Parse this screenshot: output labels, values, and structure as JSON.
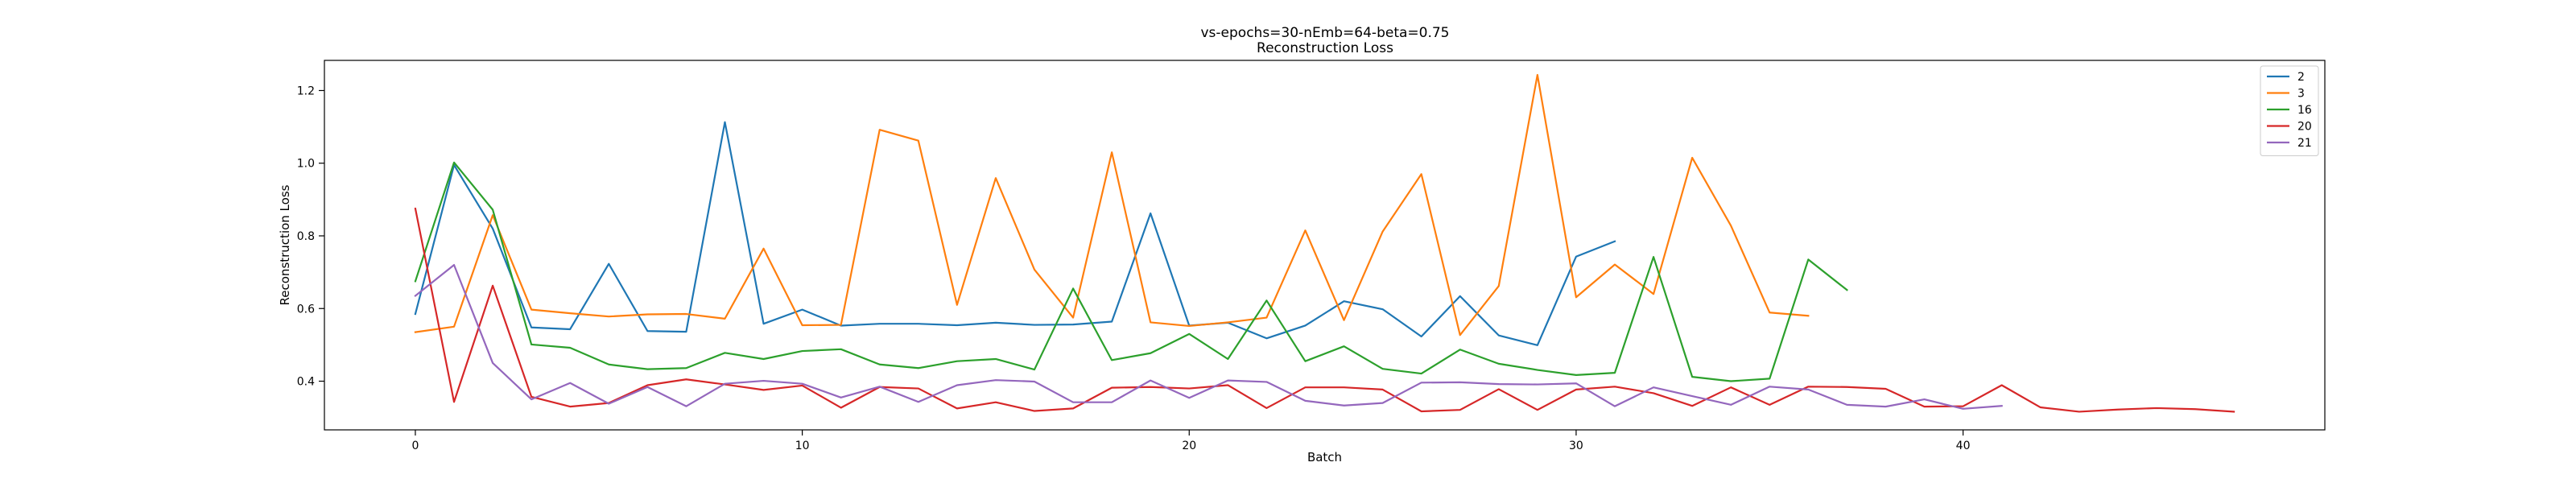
{
  "chart_data": {
    "type": "line",
    "title": "vs-epochs=30-nEmb=64-beta=0.75",
    "subtitle": "Reconstruction Loss",
    "xlabel": "Batch",
    "ylabel": "Reconstruction Loss",
    "xlim": [
      -2.35,
      49.35
    ],
    "ylim": [
      0.266,
      1.283
    ],
    "xticks": [
      0,
      10,
      20,
      30,
      40
    ],
    "yticks": [
      0.4,
      0.6,
      0.8,
      1.0,
      1.2
    ],
    "ytick_labels": [
      "0.4",
      "0.6",
      "0.8",
      "1.0",
      "1.2"
    ],
    "grid": false,
    "legend_position": "top-right",
    "series": [
      {
        "name": "2",
        "color": "#1f77b4",
        "values": [
          0.585,
          0.995,
          0.82,
          0.548,
          0.543,
          0.723,
          0.538,
          0.536,
          1.113,
          0.558,
          0.597,
          0.553,
          0.558,
          0.558,
          0.554,
          0.561,
          0.555,
          0.556,
          0.564,
          0.862,
          0.553,
          0.561,
          0.518,
          0.553,
          0.62,
          0.598,
          0.523,
          0.634,
          0.526,
          0.499,
          0.743,
          0.785
        ]
      },
      {
        "name": "3",
        "color": "#ff7f0e",
        "values": [
          0.535,
          0.55,
          0.857,
          0.597,
          0.587,
          0.578,
          0.584,
          0.585,
          0.572,
          0.765,
          0.554,
          0.555,
          1.092,
          1.062,
          0.61,
          0.959,
          0.707,
          0.575,
          1.03,
          0.562,
          0.552,
          0.562,
          0.575,
          0.815,
          0.568,
          0.812,
          0.97,
          0.527,
          0.662,
          1.243,
          0.631,
          0.721,
          0.64,
          1.015,
          0.828,
          0.589,
          0.58
        ]
      },
      {
        "name": "16",
        "color": "#2ca02c",
        "values": [
          0.675,
          1.002,
          0.872,
          0.501,
          0.492,
          0.446,
          0.433,
          0.436,
          0.478,
          0.461,
          0.483,
          0.488,
          0.446,
          0.436,
          0.455,
          0.461,
          0.432,
          0.655,
          0.458,
          0.477,
          0.53,
          0.461,
          0.622,
          0.455,
          0.496,
          0.434,
          0.421,
          0.487,
          0.448,
          0.431,
          0.417,
          0.423,
          0.742,
          0.412,
          0.4,
          0.407,
          0.735,
          0.651
        ]
      },
      {
        "name": "20",
        "color": "#d62728",
        "values": [
          0.875,
          0.343,
          0.663,
          0.357,
          0.33,
          0.34,
          0.389,
          0.405,
          0.391,
          0.376,
          0.388,
          0.327,
          0.384,
          0.38,
          0.325,
          0.342,
          0.318,
          0.325,
          0.382,
          0.384,
          0.38,
          0.389,
          0.326,
          0.383,
          0.383,
          0.377,
          0.317,
          0.321,
          0.378,
          0.321,
          0.377,
          0.385,
          0.367,
          0.332,
          0.383,
          0.335,
          0.385,
          0.384,
          0.379,
          0.33,
          0.331,
          0.389,
          0.328,
          0.316,
          0.322,
          0.326,
          0.323,
          0.316
        ]
      },
      {
        "name": "21",
        "color": "#9467bd",
        "values": [
          0.635,
          0.72,
          0.45,
          0.35,
          0.395,
          0.338,
          0.384,
          0.331,
          0.393,
          0.401,
          0.393,
          0.355,
          0.385,
          0.343,
          0.389,
          0.403,
          0.399,
          0.342,
          0.342,
          0.402,
          0.354,
          0.402,
          0.398,
          0.346,
          0.333,
          0.34,
          0.396,
          0.397,
          0.392,
          0.391,
          0.394,
          0.331,
          0.383,
          0.359,
          0.335,
          0.385,
          0.377,
          0.335,
          0.33,
          0.35,
          0.324,
          0.332
        ]
      }
    ]
  }
}
